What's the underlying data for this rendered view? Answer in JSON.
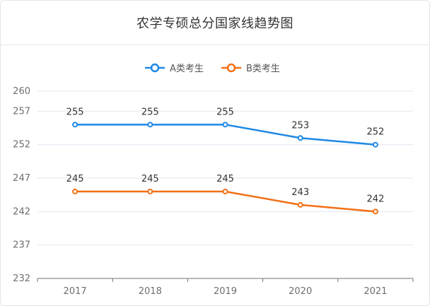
{
  "page": {
    "title": "农学专硕总分国家线趋势图"
  },
  "colors": {
    "series_a": "#1e88e5",
    "series_b": "#f36f15",
    "grid": "#e3e6f0",
    "axis": "#6e7079"
  },
  "chart_data": {
    "type": "line",
    "title": "农学专硕总分国家线趋势图",
    "xlabel": "",
    "ylabel": "",
    "categories": [
      "2017",
      "2018",
      "2019",
      "2020",
      "2021"
    ],
    "y_ticks": [
      232,
      237,
      242,
      247,
      252,
      257,
      260
    ],
    "ylim": [
      232,
      260
    ],
    "grid": true,
    "legend_position": "top-center",
    "series": [
      {
        "name": "A类考生",
        "values": [
          255,
          255,
          255,
          253,
          252
        ],
        "color": "#1e88e5"
      },
      {
        "name": "B类考生",
        "values": [
          245,
          245,
          245,
          243,
          242
        ],
        "color": "#f36f15"
      }
    ]
  }
}
